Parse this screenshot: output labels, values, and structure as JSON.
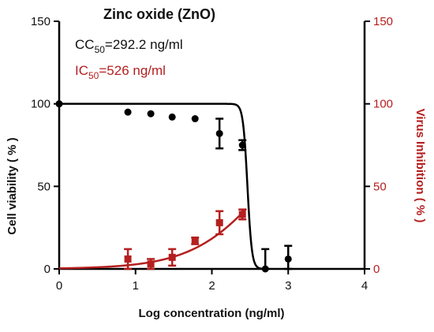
{
  "chart_data": {
    "type": "scatter",
    "title": "Zinc oxide (ZnO)",
    "annotations": [
      {
        "prefix": "CC",
        "sub": "50",
        "suffix": "=292.2 ng/ml",
        "color": "#111111"
      },
      {
        "prefix": "IC",
        "sub": "50",
        "suffix": "=526 ng/ml",
        "color": "#b51f1f"
      }
    ],
    "xlabel": "Log concentration  (ng/ml)",
    "ylabel_left": "Cell viability  ( % )",
    "ylabel_right": "Virus Inhibition  ( % )",
    "xlim": [
      0,
      4
    ],
    "ylim": [
      0,
      150
    ],
    "x_ticks": [
      0,
      1,
      2,
      3,
      4
    ],
    "y_ticks": [
      0,
      50,
      100,
      150
    ],
    "x_tick_labels": [
      "0",
      "1",
      "2",
      "3",
      "4"
    ],
    "y_tick_labels": [
      "0",
      "50",
      "100",
      "150"
    ],
    "grid": false,
    "series": [
      {
        "id": "viability",
        "axis": "left",
        "color": "#000000",
        "marker": "circle",
        "points": [
          {
            "x": 0.0,
            "y": 100,
            "err": 0
          },
          {
            "x": 0.9,
            "y": 95,
            "err": 0
          },
          {
            "x": 1.2,
            "y": 94,
            "err": 0
          },
          {
            "x": 1.48,
            "y": 92,
            "err": 0
          },
          {
            "x": 1.78,
            "y": 91,
            "err": 0
          },
          {
            "x": 2.1,
            "y": 82,
            "err": 9
          },
          {
            "x": 2.4,
            "y": 75,
            "err": 3
          },
          {
            "x": 2.7,
            "y": 0,
            "err": 12
          },
          {
            "x": 3.0,
            "y": 6,
            "err": 8
          }
        ],
        "fit": {
          "bottom": 0,
          "top": 100,
          "logEC50": 2.466,
          "hill": -15
        }
      },
      {
        "id": "inhibition",
        "axis": "right",
        "color": "#b51f1f",
        "marker": "square",
        "points": [
          {
            "x": 0.9,
            "y": 6,
            "err": 6
          },
          {
            "x": 1.2,
            "y": 3,
            "err": 3
          },
          {
            "x": 1.48,
            "y": 7,
            "err": 5
          },
          {
            "x": 1.78,
            "y": 17,
            "err": 2
          },
          {
            "x": 2.1,
            "y": 28,
            "err": 7
          },
          {
            "x": 2.4,
            "y": 33,
            "err": 3
          }
        ],
        "fit": {
          "bottom": 0,
          "top": 100,
          "logEC50": 2.72,
          "hill": 0.9,
          "x_start": 0.0,
          "x_end": 2.45
        }
      }
    ]
  }
}
